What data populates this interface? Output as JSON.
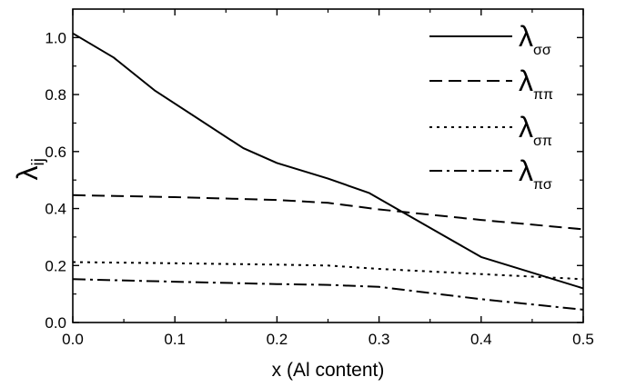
{
  "chart_data": {
    "type": "line",
    "xlabel": "x  (Al content)",
    "ylabel": "λ",
    "ylabel_subscript": "ij",
    "xlim": [
      0.0,
      0.5
    ],
    "ylim": [
      0.0,
      1.1
    ],
    "xticks": [
      "0.0",
      "0.1",
      "0.2",
      "0.3",
      "0.4",
      "0.5"
    ],
    "yticks": [
      "0.0",
      "0.2",
      "0.4",
      "0.6",
      "0.8",
      "1.0"
    ],
    "grid": false,
    "legend_position": "top-right",
    "series": [
      {
        "name": "λσσ",
        "symbol": "λ",
        "subscript": "σσ",
        "style": "solid",
        "x": [
          0.0,
          0.04,
          0.08,
          0.167,
          0.2,
          0.25,
          0.29,
          0.4,
          0.5
        ],
        "y": [
          1.015,
          0.93,
          0.815,
          0.612,
          0.56,
          0.505,
          0.455,
          0.23,
          0.12
        ]
      },
      {
        "name": "λππ",
        "symbol": "λ",
        "subscript": "ππ",
        "style": "dashed",
        "x": [
          0.0,
          0.1,
          0.2,
          0.25,
          0.3,
          0.4,
          0.5
        ],
        "y": [
          0.447,
          0.44,
          0.43,
          0.42,
          0.397,
          0.36,
          0.327
        ]
      },
      {
        "name": "λσπ",
        "symbol": "λ",
        "subscript": "σπ",
        "style": "dotted",
        "x": [
          0.0,
          0.1,
          0.2,
          0.25,
          0.3,
          0.4,
          0.5
        ],
        "y": [
          0.212,
          0.208,
          0.203,
          0.2,
          0.188,
          0.17,
          0.152
        ]
      },
      {
        "name": "λπσ",
        "symbol": "λ",
        "subscript": "πσ",
        "style": "dashdot",
        "x": [
          0.0,
          0.1,
          0.2,
          0.25,
          0.3,
          0.4,
          0.5
        ],
        "y": [
          0.152,
          0.143,
          0.135,
          0.132,
          0.125,
          0.082,
          0.045
        ]
      }
    ]
  }
}
